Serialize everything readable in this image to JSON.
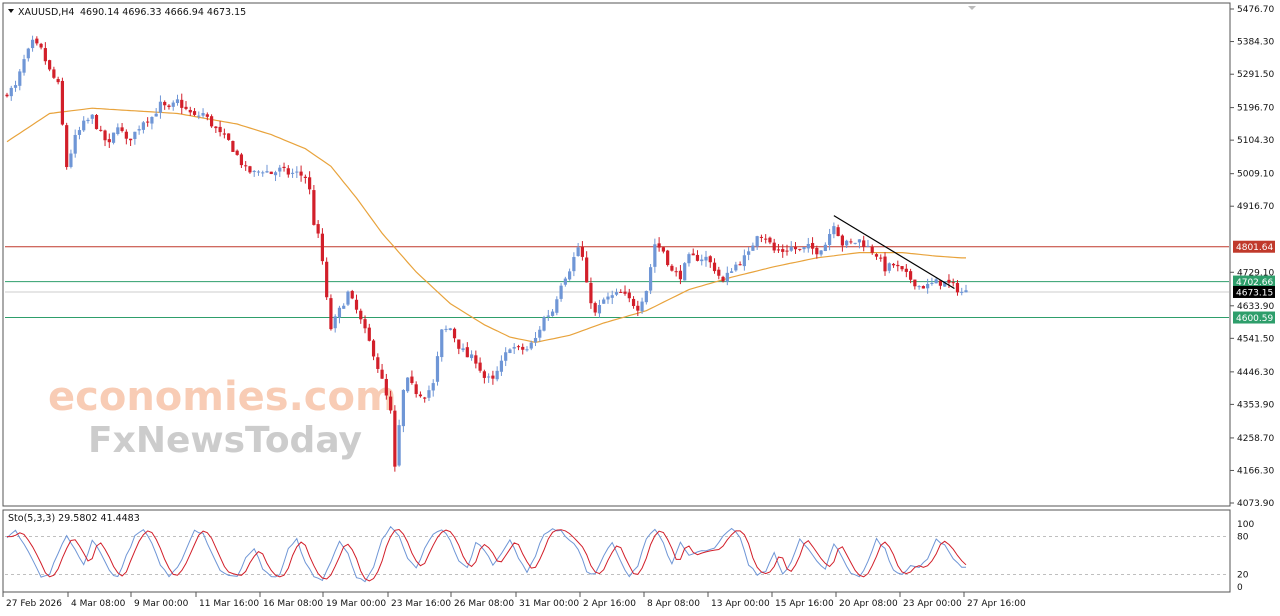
{
  "header": {
    "symbol": "XAUUSD,H4",
    "ohlc": "4690.14 4696.33 4666.94 4673.15"
  },
  "watermark": {
    "line1": "economies.com",
    "line2": "FxNewsToday"
  },
  "oscillator": {
    "label": "Sto(5,3,3) 29.5802 41.4483",
    "levels": [
      100,
      80,
      20,
      0
    ]
  },
  "colors": {
    "bull": "#6f96d6",
    "bear": "#d21f2a",
    "ma": "#e8a33c",
    "resistance": "#c0392b",
    "support": "#2e9e6b",
    "stoch_main": "#d21f2a",
    "stoch_signal": "#6f96d6",
    "current": "#000000"
  },
  "chart_data": {
    "type": "candlestick",
    "symbol": "XAUUSD",
    "timeframe": "H4",
    "ylim": [
      4073.9,
      5476.7
    ],
    "price_ticks": [
      "5476.70",
      "5384.30",
      "5291.50",
      "5196.70",
      "5104.30",
      "5009.10",
      "4916.70",
      "4729.10",
      "4633.90",
      "4541.50",
      "4446.30",
      "4353.90",
      "4258.70",
      "4166.30",
      "4073.90"
    ],
    "x_ticks": [
      "27 Feb 2026",
      "4 Mar 08:00",
      "9 Mar 00:00",
      "11 Mar 16:00",
      "16 Mar 08:00",
      "19 Mar 00:00",
      "23 Mar 16:00",
      "26 Mar 08:00",
      "31 Mar 00:00",
      "2 Apr 16:00",
      "8 Apr 08:00",
      "13 Apr 00:00",
      "15 Apr 16:00",
      "20 Apr 08:00",
      "23 Apr 00:00",
      "27 Apr 16:00"
    ],
    "levels": [
      {
        "label": "4801.64",
        "value": 4801.64,
        "role": "resistance"
      },
      {
        "label": "4702.66",
        "value": 4702.66,
        "role": "support"
      },
      {
        "label": "4673.15",
        "value": 4673.15,
        "role": "current"
      },
      {
        "label": "4600.59",
        "value": 4600.59,
        "role": "support"
      }
    ],
    "trendline": {
      "from": [
        194,
        4890
      ],
      "to": [
        219,
        4683
      ]
    },
    "close_anchors": [
      [
        0,
        5240
      ],
      [
        2,
        5255
      ],
      [
        4,
        5330
      ],
      [
        6,
        5380
      ],
      [
        8,
        5360
      ],
      [
        10,
        5300
      ],
      [
        12,
        5260
      ],
      [
        14,
        5030
      ],
      [
        16,
        5110
      ],
      [
        18,
        5150
      ],
      [
        20,
        5170
      ],
      [
        22,
        5120
      ],
      [
        24,
        5090
      ],
      [
        26,
        5150
      ],
      [
        28,
        5100
      ],
      [
        30,
        5125
      ],
      [
        32,
        5160
      ],
      [
        34,
        5170
      ],
      [
        36,
        5205
      ],
      [
        38,
        5190
      ],
      [
        40,
        5215
      ],
      [
        42,
        5190
      ],
      [
        44,
        5170
      ],
      [
        46,
        5180
      ],
      [
        48,
        5150
      ],
      [
        50,
        5120
      ],
      [
        52,
        5100
      ],
      [
        54,
        5060
      ],
      [
        56,
        5020
      ],
      [
        58,
        5010
      ],
      [
        60,
        5020
      ],
      [
        62,
        5010
      ],
      [
        64,
        5020
      ],
      [
        66,
        5010
      ],
      [
        68,
        5010
      ],
      [
        70,
        5000
      ],
      [
        71,
        4960
      ],
      [
        72,
        4870
      ],
      [
        73,
        4830
      ],
      [
        74,
        4760
      ],
      [
        75,
        4650
      ],
      [
        76,
        4570
      ],
      [
        78,
        4620
      ],
      [
        80,
        4670
      ],
      [
        82,
        4620
      ],
      [
        84,
        4560
      ],
      [
        86,
        4500
      ],
      [
        88,
        4420
      ],
      [
        90,
        4330
      ],
      [
        91,
        4170
      ],
      [
        92,
        4290
      ],
      [
        93,
        4390
      ],
      [
        94,
        4420
      ],
      [
        96,
        4390
      ],
      [
        98,
        4380
      ],
      [
        100,
        4410
      ],
      [
        102,
        4560
      ],
      [
        104,
        4570
      ],
      [
        106,
        4520
      ],
      [
        108,
        4490
      ],
      [
        110,
        4480
      ],
      [
        112,
        4430
      ],
      [
        114,
        4420
      ],
      [
        116,
        4470
      ],
      [
        118,
        4520
      ],
      [
        120,
        4510
      ],
      [
        122,
        4510
      ],
      [
        124,
        4540
      ],
      [
        126,
        4600
      ],
      [
        128,
        4620
      ],
      [
        130,
        4700
      ],
      [
        132,
        4740
      ],
      [
        134,
        4800
      ],
      [
        135,
        4770
      ],
      [
        136,
        4690
      ],
      [
        138,
        4610
      ],
      [
        140,
        4650
      ],
      [
        142,
        4660
      ],
      [
        144,
        4670
      ],
      [
        146,
        4650
      ],
      [
        148,
        4630
      ],
      [
        150,
        4680
      ],
      [
        152,
        4810
      ],
      [
        154,
        4790
      ],
      [
        156,
        4730
      ],
      [
        158,
        4720
      ],
      [
        160,
        4770
      ],
      [
        162,
        4770
      ],
      [
        164,
        4770
      ],
      [
        166,
        4740
      ],
      [
        168,
        4700
      ],
      [
        170,
        4740
      ],
      [
        172,
        4760
      ],
      [
        174,
        4780
      ],
      [
        176,
        4840
      ],
      [
        178,
        4830
      ],
      [
        180,
        4790
      ],
      [
        182,
        4790
      ],
      [
        184,
        4800
      ],
      [
        186,
        4790
      ],
      [
        188,
        4800
      ],
      [
        190,
        4790
      ],
      [
        192,
        4810
      ],
      [
        194,
        4870
      ],
      [
        196,
        4810
      ],
      [
        198,
        4810
      ],
      [
        200,
        4820
      ],
      [
        202,
        4800
      ],
      [
        204,
        4780
      ],
      [
        206,
        4740
      ],
      [
        208,
        4750
      ],
      [
        210,
        4730
      ],
      [
        212,
        4710
      ],
      [
        214,
        4690
      ],
      [
        216,
        4690
      ],
      [
        218,
        4700
      ],
      [
        220,
        4700
      ],
      [
        222,
        4690
      ],
      [
        224,
        4673
      ]
    ],
    "ma_anchors": [
      [
        0,
        5100
      ],
      [
        10,
        5180
      ],
      [
        20,
        5195
      ],
      [
        40,
        5180
      ],
      [
        54,
        5150
      ],
      [
        62,
        5120
      ],
      [
        70,
        5080
      ],
      [
        76,
        5030
      ],
      [
        82,
        4940
      ],
      [
        88,
        4840
      ],
      [
        96,
        4730
      ],
      [
        104,
        4640
      ],
      [
        112,
        4580
      ],
      [
        118,
        4545
      ],
      [
        124,
        4530
      ],
      [
        132,
        4550
      ],
      [
        140,
        4585
      ],
      [
        150,
        4620
      ],
      [
        160,
        4680
      ],
      [
        170,
        4715
      ],
      [
        180,
        4745
      ],
      [
        190,
        4770
      ],
      [
        200,
        4785
      ],
      [
        210,
        4785
      ],
      [
        218,
        4775
      ],
      [
        224,
        4770
      ]
    ],
    "stoch_anchors": [
      [
        0,
        80
      ],
      [
        2,
        88
      ],
      [
        4,
        70
      ],
      [
        6,
        45
      ],
      [
        8,
        15
      ],
      [
        10,
        20
      ],
      [
        12,
        55
      ],
      [
        14,
        80
      ],
      [
        16,
        60
      ],
      [
        18,
        35
      ],
      [
        20,
        75
      ],
      [
        22,
        55
      ],
      [
        24,
        25
      ],
      [
        26,
        15
      ],
      [
        28,
        50
      ],
      [
        30,
        80
      ],
      [
        32,
        92
      ],
      [
        34,
        70
      ],
      [
        36,
        35
      ],
      [
        38,
        15
      ],
      [
        40,
        30
      ],
      [
        42,
        60
      ],
      [
        44,
        90
      ],
      [
        46,
        85
      ],
      [
        48,
        55
      ],
      [
        50,
        25
      ],
      [
        52,
        20
      ],
      [
        54,
        18
      ],
      [
        56,
        45
      ],
      [
        58,
        60
      ],
      [
        60,
        30
      ],
      [
        62,
        15
      ],
      [
        64,
        20
      ],
      [
        66,
        60
      ],
      [
        68,
        75
      ],
      [
        70,
        40
      ],
      [
        72,
        15
      ],
      [
        74,
        12
      ],
      [
        76,
        40
      ],
      [
        78,
        72
      ],
      [
        80,
        55
      ],
      [
        82,
        15
      ],
      [
        84,
        8
      ],
      [
        86,
        30
      ],
      [
        88,
        75
      ],
      [
        90,
        95
      ],
      [
        92,
        80
      ],
      [
        94,
        45
      ],
      [
        96,
        30
      ],
      [
        98,
        60
      ],
      [
        100,
        85
      ],
      [
        102,
        92
      ],
      [
        104,
        75
      ],
      [
        106,
        40
      ],
      [
        108,
        30
      ],
      [
        110,
        70
      ],
      [
        112,
        60
      ],
      [
        114,
        35
      ],
      [
        116,
        55
      ],
      [
        118,
        75
      ],
      [
        120,
        45
      ],
      [
        122,
        25
      ],
      [
        124,
        50
      ],
      [
        126,
        85
      ],
      [
        128,
        92
      ],
      [
        130,
        88
      ],
      [
        132,
        75
      ],
      [
        134,
        60
      ],
      [
        136,
        25
      ],
      [
        138,
        20
      ],
      [
        140,
        50
      ],
      [
        142,
        70
      ],
      [
        144,
        40
      ],
      [
        146,
        15
      ],
      [
        148,
        35
      ],
      [
        150,
        78
      ],
      [
        152,
        92
      ],
      [
        154,
        70
      ],
      [
        156,
        35
      ],
      [
        158,
        70
      ],
      [
        160,
        50
      ],
      [
        162,
        55
      ],
      [
        164,
        58
      ],
      [
        166,
        60
      ],
      [
        168,
        80
      ],
      [
        170,
        92
      ],
      [
        172,
        80
      ],
      [
        174,
        35
      ],
      [
        176,
        20
      ],
      [
        178,
        25
      ],
      [
        180,
        55
      ],
      [
        182,
        20
      ],
      [
        184,
        40
      ],
      [
        186,
        78
      ],
      [
        188,
        60
      ],
      [
        190,
        40
      ],
      [
        192,
        30
      ],
      [
        194,
        70
      ],
      [
        196,
        45
      ],
      [
        198,
        20
      ],
      [
        200,
        15
      ],
      [
        202,
        40
      ],
      [
        204,
        75
      ],
      [
        206,
        60
      ],
      [
        208,
        25
      ],
      [
        210,
        20
      ],
      [
        212,
        35
      ],
      [
        214,
        30
      ],
      [
        216,
        45
      ],
      [
        218,
        75
      ],
      [
        220,
        65
      ],
      [
        222,
        45
      ],
      [
        224,
        32
      ]
    ]
  }
}
